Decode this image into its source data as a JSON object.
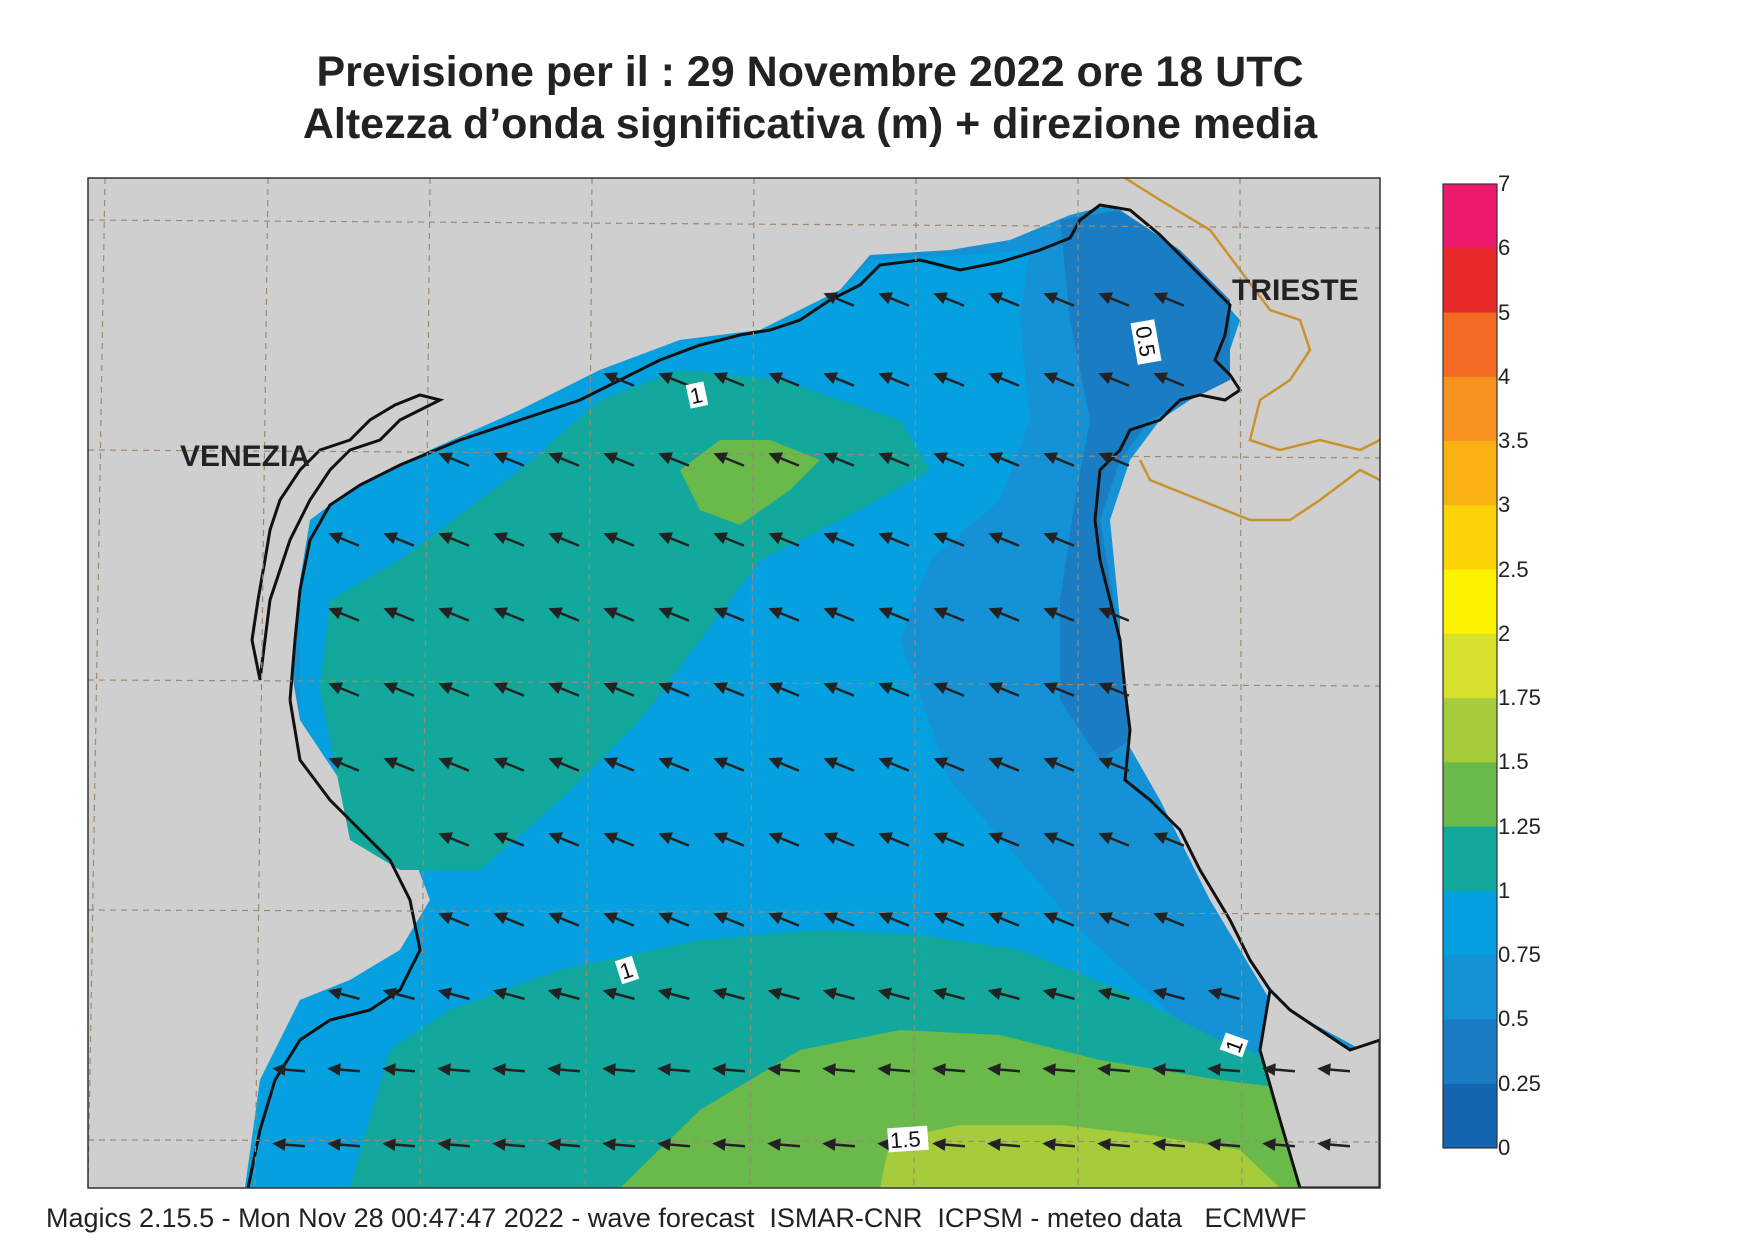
{
  "header": {
    "title_line1": "Previsione per il  :  29 Novembre  2022   ore 18 UTC",
    "title_line2": "Altezza d’onda significativa (m) + direzione media"
  },
  "map": {
    "cities": [
      {
        "name": "VENEZIA"
      },
      {
        "name": "TRIESTE"
      }
    ],
    "contour_labels": [
      "1",
      "0.5",
      "1",
      "1",
      "1.5"
    ],
    "land_color": "#cfcfcf",
    "coast_color": "#111111",
    "border_color": "#c8932e",
    "arrow_direction": "towards west-southwest"
  },
  "colorbar": {
    "levels": [
      "7",
      "6",
      "5",
      "4",
      "3.5",
      "3",
      "2.5",
      "2",
      "1.75",
      "1.5",
      "1.25",
      "1",
      "0.75",
      "0.5",
      "0.25",
      "0"
    ],
    "colors": [
      "#ee1a6e",
      "#e82a2a",
      "#f26a23",
      "#f7931e",
      "#f9b212",
      "#fcd305",
      "#fdf200",
      "#d7e02a",
      "#a6cc3c",
      "#6ab94b",
      "#12a89b",
      "#05a0e0",
      "#1591d6",
      "#1a7dc4",
      "#1466b0"
    ]
  },
  "footer": {
    "text": "Magics 2.15.5 - Mon Nov 28 00:47:47 2022 - wave forecast  ISMAR-CNR  ICPSM - meteo data   ECMWF"
  }
}
